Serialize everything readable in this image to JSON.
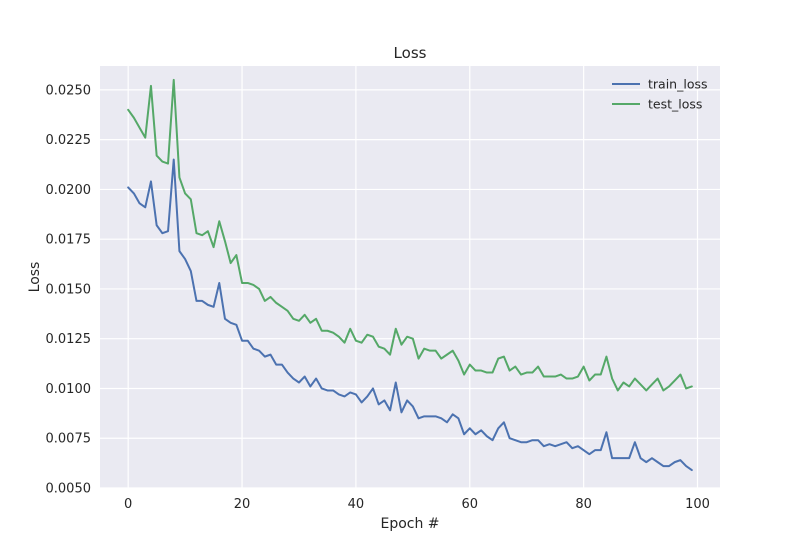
{
  "chart_data": {
    "type": "line",
    "title": "Loss",
    "xlabel": "Epoch #",
    "ylabel": "Loss",
    "xlim": [
      -4.95,
      103.95
    ],
    "ylim": [
      0.005,
      0.0262
    ],
    "xticks": [
      0,
      20,
      40,
      60,
      80,
      100
    ],
    "yticks": [
      0.005,
      0.0075,
      0.01,
      0.0125,
      0.015,
      0.0175,
      0.02,
      0.0225,
      0.025
    ],
    "xtick_labels": [
      "0",
      "20",
      "40",
      "60",
      "80",
      "100"
    ],
    "ytick_labels": [
      "0.0050",
      "0.0075",
      "0.0100",
      "0.0125",
      "0.0150",
      "0.0175",
      "0.0200",
      "0.0225",
      "0.0250"
    ],
    "grid": true,
    "legend_position": "top-right",
    "series": [
      {
        "name": "train_loss",
        "color": "#4c72b0",
        "values": [
          0.0201,
          0.0198,
          0.0193,
          0.0191,
          0.0204,
          0.0182,
          0.0178,
          0.0179,
          0.0215,
          0.0169,
          0.0165,
          0.0159,
          0.0144,
          0.0144,
          0.0142,
          0.0141,
          0.0153,
          0.0135,
          0.0133,
          0.0132,
          0.0124,
          0.0124,
          0.012,
          0.0119,
          0.0116,
          0.0117,
          0.0112,
          0.0112,
          0.0108,
          0.0105,
          0.0103,
          0.0106,
          0.0101,
          0.0105,
          0.01,
          0.0099,
          0.0099,
          0.0097,
          0.0096,
          0.0098,
          0.0097,
          0.0093,
          0.0096,
          0.01,
          0.0092,
          0.0094,
          0.0089,
          0.0103,
          0.0088,
          0.0094,
          0.0091,
          0.0085,
          0.0086,
          0.0086,
          0.0086,
          0.0085,
          0.0083,
          0.0087,
          0.0085,
          0.0077,
          0.008,
          0.0077,
          0.0079,
          0.0076,
          0.0074,
          0.008,
          0.0083,
          0.0075,
          0.0074,
          0.0073,
          0.0073,
          0.0074,
          0.0074,
          0.0071,
          0.0072,
          0.0071,
          0.0072,
          0.0073,
          0.007,
          0.0071,
          0.0069,
          0.0067,
          0.0069,
          0.0069,
          0.0078,
          0.0065,
          0.0065,
          0.0065,
          0.0065,
          0.0073,
          0.0065,
          0.0063,
          0.0065,
          0.0063,
          0.0061,
          0.0061,
          0.0063,
          0.0064,
          0.0061,
          0.0059
        ]
      },
      {
        "name": "test_loss",
        "color": "#55a868",
        "values": [
          0.024,
          0.0236,
          0.0231,
          0.0226,
          0.0252,
          0.0217,
          0.0214,
          0.0213,
          0.0255,
          0.0206,
          0.0198,
          0.0195,
          0.0178,
          0.0177,
          0.0179,
          0.0171,
          0.0184,
          0.0174,
          0.0163,
          0.0167,
          0.0153,
          0.0153,
          0.0152,
          0.015,
          0.0144,
          0.0146,
          0.0143,
          0.0141,
          0.0139,
          0.0135,
          0.0134,
          0.0137,
          0.0133,
          0.0135,
          0.0129,
          0.0129,
          0.0128,
          0.0126,
          0.0123,
          0.013,
          0.0124,
          0.0123,
          0.0127,
          0.0126,
          0.0121,
          0.012,
          0.0117,
          0.013,
          0.0122,
          0.0126,
          0.0125,
          0.0115,
          0.012,
          0.0119,
          0.0119,
          0.0115,
          0.0117,
          0.0119,
          0.0114,
          0.0107,
          0.0112,
          0.0109,
          0.0109,
          0.0108,
          0.0108,
          0.0115,
          0.0116,
          0.0109,
          0.0111,
          0.0107,
          0.0108,
          0.0108,
          0.0111,
          0.0106,
          0.0106,
          0.0106,
          0.0107,
          0.0105,
          0.0105,
          0.0106,
          0.0111,
          0.0104,
          0.0107,
          0.0107,
          0.0116,
          0.0105,
          0.0099,
          0.0103,
          0.0101,
          0.0105,
          0.0102,
          0.0099,
          0.0102,
          0.0105,
          0.0099,
          0.0101,
          0.0104,
          0.0107,
          0.01,
          0.0101
        ]
      }
    ]
  }
}
